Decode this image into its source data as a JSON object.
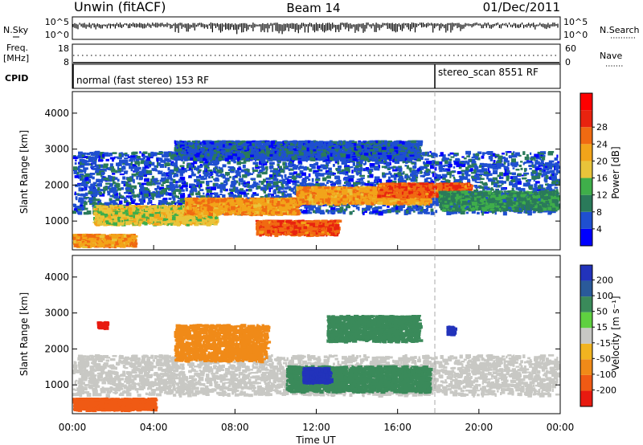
{
  "header": {
    "station": "Unwin (fitACF)",
    "beam": "Beam 14",
    "date": "01/Dec/2011"
  },
  "noise_panel": {
    "left_label": "N.Sky",
    "left_ticks": [
      "10^5",
      "10^0"
    ],
    "right_label": "N.Search",
    "right_ticks": [
      "10^5",
      "10^0"
    ]
  },
  "freq_panel": {
    "left_label_1": "Freq.",
    "left_label_2": "[MHz]",
    "left_ticks": [
      "18",
      "8"
    ],
    "right_label": "Nave",
    "right_ticks": [
      "60",
      "0"
    ]
  },
  "cpid_panel": {
    "label": "CPID",
    "modes": [
      {
        "text": "normal (fast stereo) 153 RF",
        "start_hour": 0
      },
      {
        "text": "stereo_scan 8551 RF",
        "start_hour": 18
      }
    ]
  },
  "x_axis": {
    "label": "Time UT",
    "ticks": [
      "00:00",
      "04:00",
      "08:00",
      "12:00",
      "16:00",
      "20:00",
      "00:00"
    ]
  },
  "y_axis": {
    "label": "Slant Range [km]",
    "ticks": [
      "1000",
      "2000",
      "3000",
      "4000"
    ]
  },
  "power_colorbar": {
    "label": "Power [dB]",
    "ticks": [
      "4",
      "8",
      "12",
      "16",
      "20",
      "24",
      "28"
    ],
    "colors": [
      "#0000ff",
      "#1f4fd0",
      "#2a7a5a",
      "#3fae4a",
      "#e9c43a",
      "#f2a41a",
      "#f06a12",
      "#e8230f",
      "#ff0000"
    ]
  },
  "velocity_colorbar": {
    "label": "Velocity [m s⁻¹]",
    "ticks": [
      "200",
      "100",
      "50",
      "15",
      "-15",
      "-50",
      "-100",
      "-200"
    ],
    "colors": [
      "#2233bb",
      "#2a5a9a",
      "#3a8a5a",
      "#5fd040",
      "#c8c8c4",
      "#f2b420",
      "#f08a18",
      "#f05a14",
      "#e81a10"
    ]
  },
  "chart_data": [
    {
      "type": "heatmap",
      "title": "",
      "xlabel": "Time UT",
      "ylabel": "Slant Range [km]",
      "xlim": [
        0,
        24
      ],
      "ylim": [
        200,
        4600
      ],
      "colorbar": "Power [dB]",
      "regions": [
        {
          "t0": 0.0,
          "t1": 24.0,
          "center_km": 2100,
          "width_km": 1700,
          "value": 6
        },
        {
          "t0": 1.0,
          "t1": 7.0,
          "center_km": 1200,
          "width_km": 500,
          "value": 16
        },
        {
          "t0": 5.5,
          "t1": 11.0,
          "center_km": 1450,
          "width_km": 420,
          "value": 20
        },
        {
          "t0": 9.0,
          "t1": 13.0,
          "center_km": 850,
          "width_km": 380,
          "value": 24
        },
        {
          "t0": 11.0,
          "t1": 17.5,
          "center_km": 1750,
          "width_km": 450,
          "value": 20
        },
        {
          "t0": 15.0,
          "t1": 19.5,
          "center_km": 1900,
          "width_km": 350,
          "value": 24
        },
        {
          "t0": 18.0,
          "t1": 24.0,
          "center_km": 1600,
          "width_km": 500,
          "value": 10
        },
        {
          "t0": 0.0,
          "t1": 3.0,
          "center_km": 500,
          "width_km": 300,
          "value": 20
        },
        {
          "t0": 5.0,
          "t1": 17.0,
          "center_km": 3000,
          "width_km": 500,
          "value": 6
        }
      ]
    },
    {
      "type": "heatmap",
      "title": "",
      "xlabel": "Time UT",
      "ylabel": "Slant Range [km]",
      "xlim": [
        0,
        24
      ],
      "ylim": [
        200,
        4600
      ],
      "colorbar": "Velocity [m s⁻¹]",
      "regions": [
        {
          "t0": 0.0,
          "t1": 24.0,
          "center_km": 1300,
          "width_km": 1100,
          "value": 0
        },
        {
          "t0": 5.0,
          "t1": 9.5,
          "center_km": 2200,
          "width_km": 1000,
          "value": -50
        },
        {
          "t0": 10.5,
          "t1": 17.5,
          "center_km": 1200,
          "width_km": 700,
          "value": 50
        },
        {
          "t0": 11.3,
          "t1": 12.6,
          "center_km": 1300,
          "width_km": 400,
          "value": 200
        },
        {
          "t0": 12.5,
          "t1": 17.0,
          "center_km": 2600,
          "width_km": 700,
          "value": 50
        },
        {
          "t0": 1.2,
          "t1": 1.6,
          "center_km": 2700,
          "width_km": 150,
          "value": -200
        },
        {
          "t0": 18.4,
          "t1": 18.7,
          "center_km": 2550,
          "width_km": 200,
          "value": 200
        },
        {
          "t0": 0.0,
          "t1": 4.0,
          "center_km": 500,
          "width_km": 300,
          "value": -100
        }
      ]
    }
  ]
}
